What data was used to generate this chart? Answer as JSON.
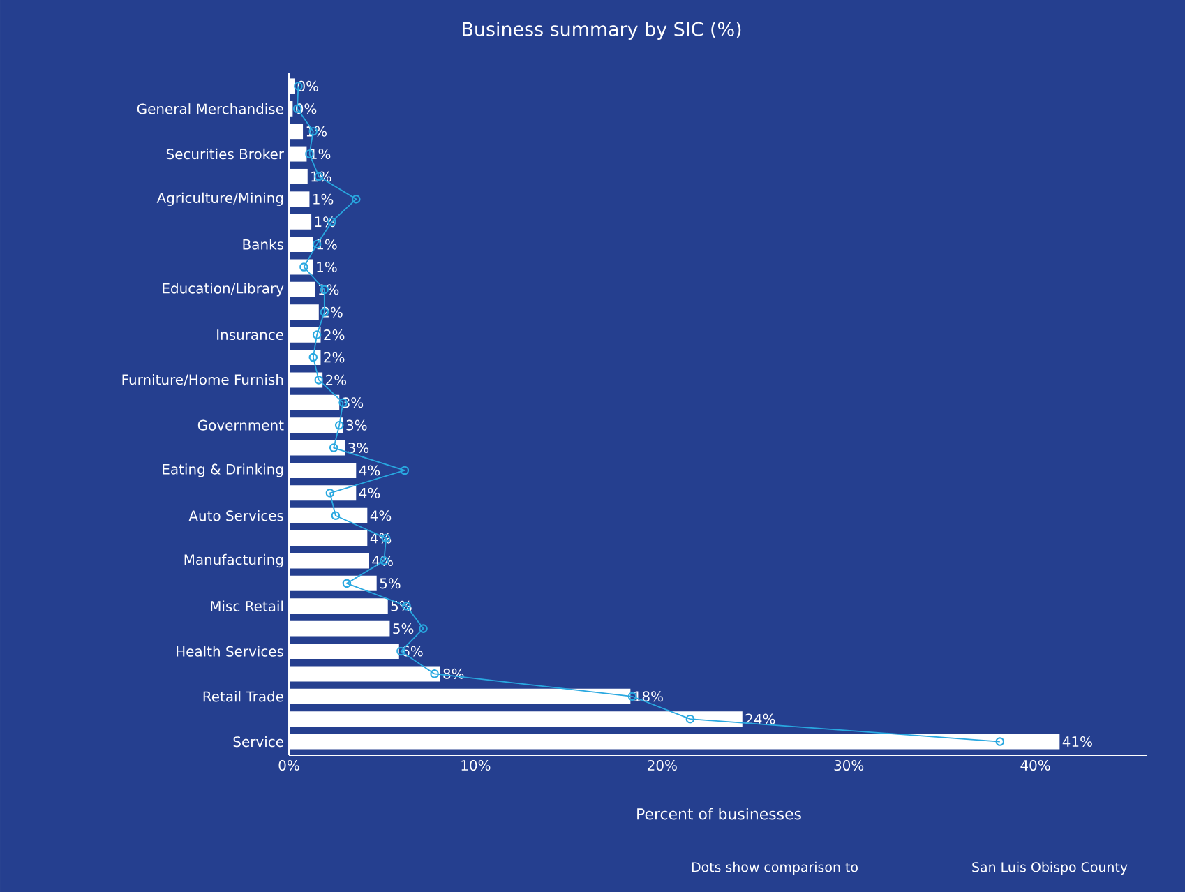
{
  "chart_data": {
    "type": "bar",
    "orientation": "horizontal",
    "title": "Business summary by SIC (%)",
    "xlabel": "Percent of businesses",
    "categories": [
      null,
      "General Merchandise",
      null,
      "Securities Broker",
      null,
      "Agriculture/Mining",
      null,
      "Banks",
      null,
      "Education/Library",
      null,
      "Insurance",
      null,
      "Furniture/Home Furnish",
      null,
      "Government",
      null,
      "Eating & Drinking",
      null,
      "Auto Services",
      null,
      "Manufacturing",
      null,
      "Misc Retail",
      null,
      "Health Services",
      null,
      "Retail Trade",
      null,
      "Service"
    ],
    "series": [
      {
        "color": "#ffffff",
        "values": [
          0.3,
          0.2,
          0.75,
          0.95,
          1.0,
          1.1,
          1.2,
          1.3,
          1.3,
          1.4,
          1.6,
          1.7,
          1.7,
          1.8,
          2.7,
          2.9,
          3.0,
          3.6,
          3.6,
          4.2,
          4.2,
          4.3,
          4.7,
          5.3,
          5.4,
          5.9,
          8.1,
          18.3,
          24.3,
          41.3
        ],
        "value_labels": [
          "0%",
          "0%",
          "1%",
          "1%",
          "1%",
          "1%",
          "1%",
          "1%",
          "1%",
          "1%",
          "2%",
          "2%",
          "2%",
          "2%",
          "3%",
          "3%",
          "3%",
          "4%",
          "4%",
          "4%",
          "4%",
          "4%",
          "5%",
          "5%",
          "5%",
          "6%",
          "8%",
          "18%",
          "24%",
          "41%"
        ]
      },
      {
        "type": "line",
        "color": "#29a8e0",
        "marker": "circle",
        "values": [
          0.5,
          0.45,
          1.3,
          1.1,
          1.6,
          3.6,
          2.3,
          1.5,
          0.8,
          1.9,
          1.9,
          1.5,
          1.3,
          1.6,
          2.9,
          2.7,
          2.4,
          6.2,
          2.2,
          2.5,
          5.2,
          5.1,
          3.1,
          6.3,
          7.2,
          6.0,
          7.8,
          18.4,
          21.5,
          38.1
        ]
      }
    ],
    "xlim": [
      0,
      46
    ],
    "xticks": [
      {
        "value": 0,
        "label": "0%"
      },
      {
        "value": 10,
        "label": "10%"
      },
      {
        "value": 20,
        "label": "20%"
      },
      {
        "value": 30,
        "label": "30%"
      },
      {
        "value": 40,
        "label": "40%"
      }
    ],
    "annotations": [
      "Dots show comparison to",
      "San Luis Obispo County"
    ]
  }
}
